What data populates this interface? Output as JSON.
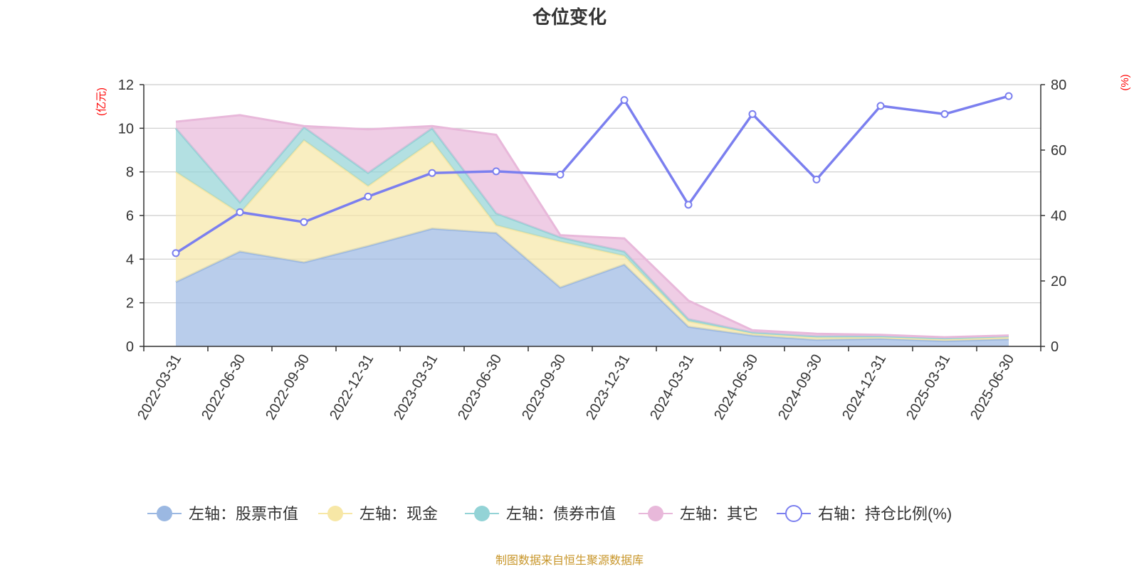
{
  "title": "仓位变化",
  "source_note": "制图数据来自恒生聚源数据库",
  "chart_data": {
    "type": "area",
    "categories": [
      "2022-03-31",
      "2022-06-30",
      "2022-09-30",
      "2022-12-31",
      "2023-03-31",
      "2023-06-30",
      "2023-09-30",
      "2023-12-31",
      "2024-03-31",
      "2024-06-30",
      "2024-09-30",
      "2024-12-31",
      "2025-03-31",
      "2025-06-30"
    ],
    "left_axis": {
      "unit_label": "(亿元)",
      "ylim": [
        0,
        12
      ],
      "ticks": [
        0,
        2,
        4,
        6,
        8,
        10,
        12
      ]
    },
    "right_axis": {
      "unit_label": "(%)",
      "ylim": [
        0,
        80
      ],
      "ticks": [
        0,
        20,
        40,
        60,
        80
      ]
    },
    "stacked_series": [
      {
        "name": "左轴：股票市值",
        "color": "#9bb8e2",
        "values": [
          2.95,
          4.35,
          3.85,
          4.6,
          5.4,
          5.2,
          2.7,
          3.75,
          0.9,
          0.5,
          0.3,
          0.35,
          0.25,
          0.33
        ]
      },
      {
        "name": "左轴：现金",
        "color": "#f7e7a6",
        "values": [
          5.05,
          1.75,
          5.6,
          2.75,
          4.0,
          0.35,
          2.1,
          0.4,
          0.25,
          0.1,
          0.12,
          0.08,
          0.08,
          0.1
        ]
      },
      {
        "name": "左轴：债券市值",
        "color": "#93d3d6",
        "values": [
          2.0,
          0.5,
          0.6,
          0.6,
          0.6,
          0.55,
          0.2,
          0.2,
          0.1,
          0.04,
          0.04,
          0.04,
          0.04,
          0.04
        ]
      },
      {
        "name": "左轴：其它",
        "color": "#e8b8da",
        "values": [
          0.3,
          4.0,
          0.05,
          2.0,
          0.1,
          3.6,
          0.1,
          0.6,
          0.85,
          0.1,
          0.12,
          0.06,
          0.05,
          0.03
        ]
      }
    ],
    "line_series": {
      "name": "右轴：持仓比例(%)",
      "color": "#7b7fef",
      "values": [
        28.5,
        41.0,
        38.0,
        45.8,
        53.0,
        53.5,
        52.5,
        75.3,
        43.3,
        71.0,
        51.0,
        73.5,
        71.0,
        76.5
      ]
    },
    "grid": true,
    "legend_position": "bottom"
  }
}
